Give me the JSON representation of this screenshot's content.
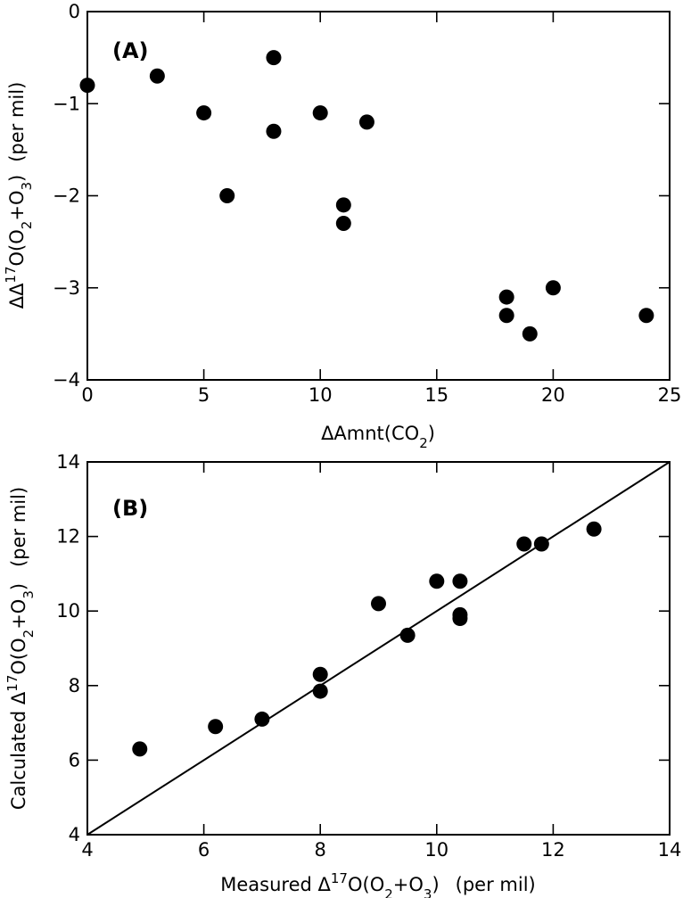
{
  "chart_data": [
    {
      "type": "scatter",
      "panel_label": "(A)",
      "xlabel": {
        "prefix": "ΔAmnt(CO",
        "sub": "2",
        "suffix": ")"
      },
      "ylabel": {
        "delta": "ΔΔ",
        "sup": "17",
        "o": "O(O",
        "sub1": "2",
        "plus": "+O",
        "sub2": "3",
        "close": ")",
        "units": "(per mil)"
      },
      "xlim": [
        0,
        25
      ],
      "ylim": [
        -4,
        0
      ],
      "xticks": [
        0,
        5,
        10,
        15,
        20,
        25
      ],
      "yticks": [
        0,
        -1,
        -2,
        -3,
        -4
      ],
      "xtick_labels": [
        "0",
        "5",
        "10",
        "15",
        "20",
        "25"
      ],
      "ytick_labels": [
        "0",
        "−1",
        "−2",
        "−3",
        "−4"
      ],
      "points": [
        {
          "x": 0,
          "y": -0.8
        },
        {
          "x": 3,
          "y": -0.7
        },
        {
          "x": 5,
          "y": -1.1
        },
        {
          "x": 6,
          "y": -2.0
        },
        {
          "x": 8,
          "y": -0.5
        },
        {
          "x": 8,
          "y": -1.3
        },
        {
          "x": 10,
          "y": -1.1
        },
        {
          "x": 11,
          "y": -2.1
        },
        {
          "x": 11,
          "y": -2.3
        },
        {
          "x": 12,
          "y": -1.2
        },
        {
          "x": 18,
          "y": -3.1
        },
        {
          "x": 18,
          "y": -3.3
        },
        {
          "x": 19,
          "y": -3.5
        },
        {
          "x": 20,
          "y": -3.0
        },
        {
          "x": 24,
          "y": -3.3
        }
      ]
    },
    {
      "type": "scatter",
      "panel_label": "(B)",
      "xlabel": {
        "pre": "Measured Δ",
        "sup": "17",
        "o": "O(O",
        "sub1": "2",
        "plus": "+O",
        "sub2": "3",
        "close": ")",
        "units": "(per mil)"
      },
      "ylabel": {
        "pre": "Calculated Δ",
        "sup": "17",
        "o": "O(O",
        "sub1": "2",
        "plus": "+O",
        "sub2": "3",
        "close": ")",
        "units": "(per mil)"
      },
      "xlim": [
        4,
        14
      ],
      "ylim": [
        4,
        14
      ],
      "xticks": [
        4,
        6,
        8,
        10,
        12,
        14
      ],
      "yticks": [
        4,
        6,
        8,
        10,
        12,
        14
      ],
      "xtick_labels": [
        "4",
        "6",
        "8",
        "10",
        "12",
        "14"
      ],
      "ytick_labels": [
        "4",
        "6",
        "8",
        "10",
        "12",
        "14"
      ],
      "reference_line": {
        "from": [
          4,
          4
        ],
        "to": [
          14,
          14
        ]
      },
      "points": [
        {
          "x": 4.9,
          "y": 6.3
        },
        {
          "x": 6.2,
          "y": 6.9
        },
        {
          "x": 7.0,
          "y": 7.1
        },
        {
          "x": 8.0,
          "y": 7.85
        },
        {
          "x": 8.0,
          "y": 8.3
        },
        {
          "x": 9.0,
          "y": 10.2
        },
        {
          "x": 9.5,
          "y": 9.35
        },
        {
          "x": 10.0,
          "y": 10.8
        },
        {
          "x": 10.4,
          "y": 9.8
        },
        {
          "x": 10.4,
          "y": 9.9
        },
        {
          "x": 10.4,
          "y": 10.8
        },
        {
          "x": 11.5,
          "y": 11.8
        },
        {
          "x": 11.8,
          "y": 11.8
        },
        {
          "x": 12.7,
          "y": 12.2
        }
      ]
    }
  ]
}
